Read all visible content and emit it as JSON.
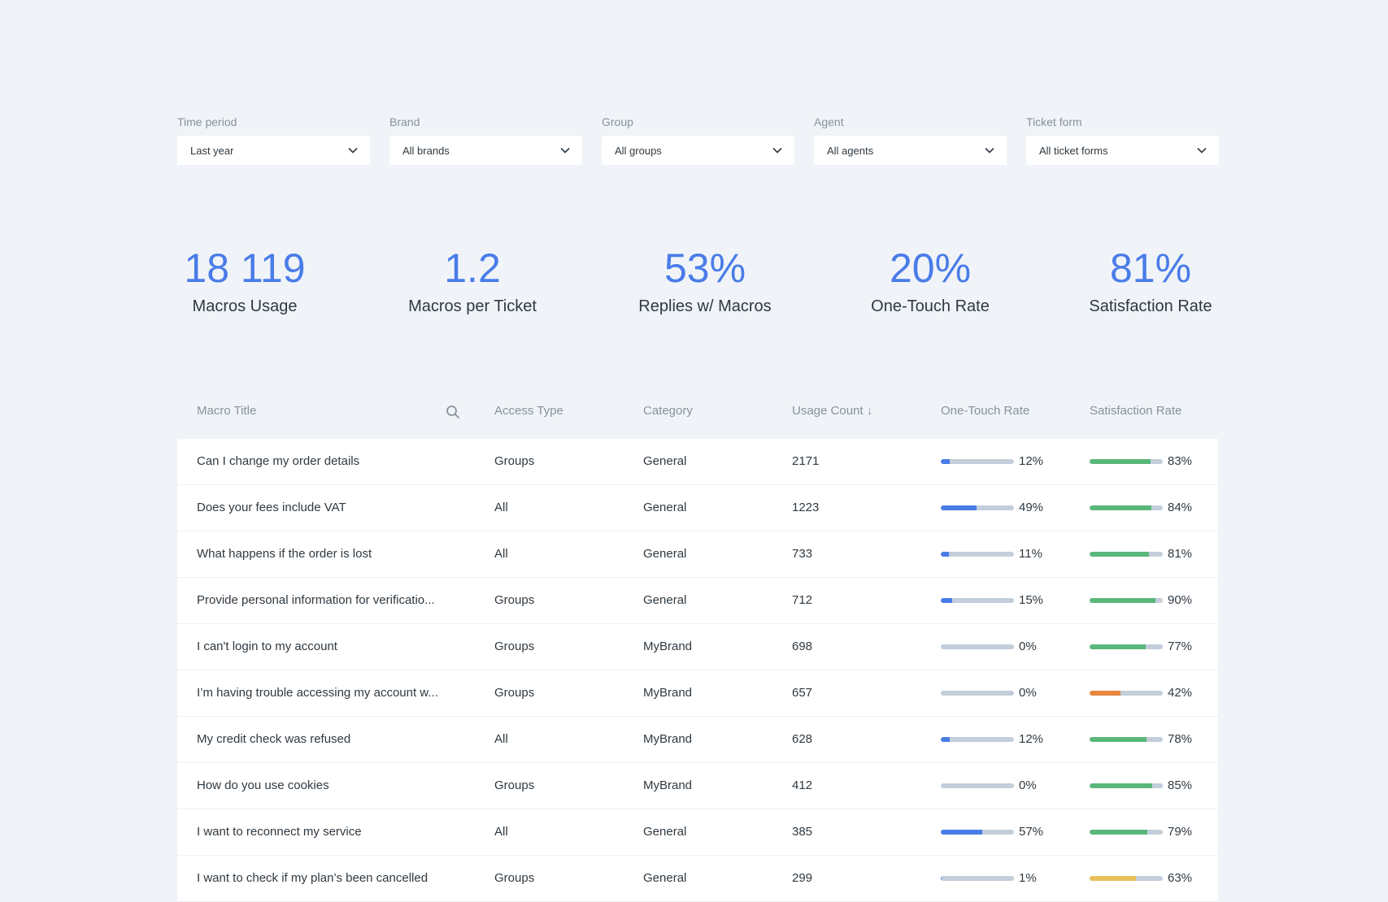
{
  "colors": {
    "accent": "#4a7ce8",
    "satisfaction_good": "#5ab77a",
    "satisfaction_mid": "#e8c15a",
    "satisfaction_bad": "#e5873f",
    "bar_track": "#c2ceda"
  },
  "filters": [
    {
      "label": "Time period",
      "value": "Last year"
    },
    {
      "label": "Brand",
      "value": "All brands"
    },
    {
      "label": "Group",
      "value": "All groups"
    },
    {
      "label": "Agent",
      "value": "All agents"
    },
    {
      "label": "Ticket form",
      "value": "All ticket forms"
    }
  ],
  "kpis": [
    {
      "value": "18 119",
      "label": "Macros Usage"
    },
    {
      "value": "1.2",
      "label": "Macros per Ticket"
    },
    {
      "value": "53%",
      "label": "Replies w/ Macros"
    },
    {
      "value": "20%",
      "label": "One-Touch Rate"
    },
    {
      "value": "81%",
      "label": "Satisfaction Rate"
    }
  ],
  "table": {
    "columns": {
      "title": "Macro Title",
      "access": "Access Type",
      "category": "Category",
      "usage": "Usage Count ↓",
      "one_touch": "One-Touch Rate",
      "satisfaction": "Satisfaction Rate"
    },
    "search_icon": "search-icon",
    "rows": [
      {
        "title": "Can I change my order details",
        "access": "Groups",
        "category": "General",
        "usage": "2171",
        "one_touch": 12,
        "one_touch_label": "12%",
        "satisfaction": 83,
        "satisfaction_label": "83%",
        "sat_color": "#5ab77a"
      },
      {
        "title": "Does your fees include VAT",
        "access": "All",
        "category": "General",
        "usage": "1223",
        "one_touch": 49,
        "one_touch_label": "49%",
        "satisfaction": 84,
        "satisfaction_label": "84%",
        "sat_color": "#5ab77a"
      },
      {
        "title": "What happens if the order is lost",
        "access": "All",
        "category": "General",
        "usage": "733",
        "one_touch": 11,
        "one_touch_label": "11%",
        "satisfaction": 81,
        "satisfaction_label": "81%",
        "sat_color": "#5ab77a"
      },
      {
        "title": "Provide personal information for verificatio...",
        "access": "Groups",
        "category": "General",
        "usage": "712",
        "one_touch": 15,
        "one_touch_label": "15%",
        "satisfaction": 90,
        "satisfaction_label": "90%",
        "sat_color": "#5ab77a"
      },
      {
        "title": "I can't login to my account",
        "access": "Groups",
        "category": "MyBrand",
        "usage": "698",
        "one_touch": 0,
        "one_touch_label": "0%",
        "satisfaction": 77,
        "satisfaction_label": "77%",
        "sat_color": "#5ab77a"
      },
      {
        "title": "I’m having trouble accessing my account w...",
        "access": "Groups",
        "category": "MyBrand",
        "usage": "657",
        "one_touch": 0,
        "one_touch_label": "0%",
        "satisfaction": 42,
        "satisfaction_label": "42%",
        "sat_color": "#e5873f"
      },
      {
        "title": "My credit check was refused",
        "access": "All",
        "category": "MyBrand",
        "usage": "628",
        "one_touch": 12,
        "one_touch_label": "12%",
        "satisfaction": 78,
        "satisfaction_label": "78%",
        "sat_color": "#5ab77a"
      },
      {
        "title": "How do you use cookies",
        "access": "Groups",
        "category": "MyBrand",
        "usage": "412",
        "one_touch": 0,
        "one_touch_label": "0%",
        "satisfaction": 85,
        "satisfaction_label": "85%",
        "sat_color": "#5ab77a"
      },
      {
        "title": "I want to reconnect my service",
        "access": "All",
        "category": "General",
        "usage": "385",
        "one_touch": 57,
        "one_touch_label": "57%",
        "satisfaction": 79,
        "satisfaction_label": "79%",
        "sat_color": "#5ab77a"
      },
      {
        "title": "I want to check if my plan’s been cancelled",
        "access": "Groups",
        "category": "General",
        "usage": "299",
        "one_touch": 1,
        "one_touch_label": "1%",
        "satisfaction": 63,
        "satisfaction_label": "63%",
        "sat_color": "#e8c15a"
      }
    ]
  }
}
